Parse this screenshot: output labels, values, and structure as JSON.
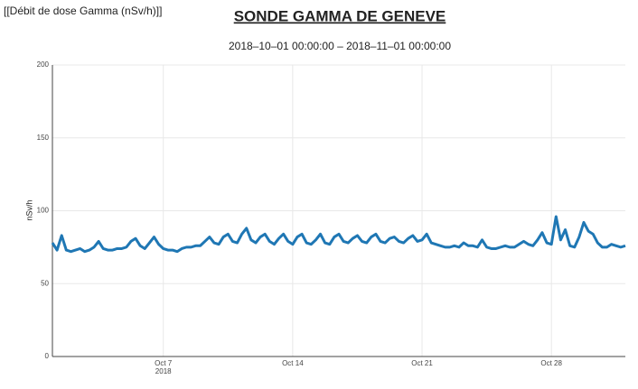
{
  "chart_data": {
    "type": "line",
    "corner_label": "[[Débit de dose Gamma (nSv/h)]]",
    "title": "SONDE GAMMA DE GENEVE",
    "subtitle": "2018‒10‒01 00:00:00 ‒ 2018‒11‒01 00:00:00",
    "y_label": "nSv/h",
    "x_year_label": "2018",
    "xlim": [
      "2018-10-01 00:00",
      "2018-11-01 00:00"
    ],
    "xticks": [
      {
        "value": "2018-10-07 00:00",
        "label": "Oct 7"
      },
      {
        "value": "2018-10-14 00:00",
        "label": "Oct 14"
      },
      {
        "value": "2018-10-21 00:00",
        "label": "Oct 21"
      },
      {
        "value": "2018-10-28 00:00",
        "label": "Oct 28"
      }
    ],
    "ylim": [
      0,
      200
    ],
    "yticks": [
      0,
      50,
      100,
      150,
      200
    ],
    "grid": true,
    "x": [
      "2018-10-01 00:00",
      "2018-10-01 06:00",
      "2018-10-01 12:00",
      "2018-10-01 18:00",
      "2018-10-02 00:00",
      "2018-10-02 06:00",
      "2018-10-02 12:00",
      "2018-10-02 18:00",
      "2018-10-03 00:00",
      "2018-10-03 06:00",
      "2018-10-03 12:00",
      "2018-10-03 18:00",
      "2018-10-04 00:00",
      "2018-10-04 06:00",
      "2018-10-04 12:00",
      "2018-10-04 18:00",
      "2018-10-05 00:00",
      "2018-10-05 06:00",
      "2018-10-05 12:00",
      "2018-10-05 18:00",
      "2018-10-06 00:00",
      "2018-10-06 06:00",
      "2018-10-06 12:00",
      "2018-10-06 18:00",
      "2018-10-07 00:00",
      "2018-10-07 06:00",
      "2018-10-07 12:00",
      "2018-10-07 18:00",
      "2018-10-08 00:00",
      "2018-10-08 06:00",
      "2018-10-08 12:00",
      "2018-10-08 18:00",
      "2018-10-09 00:00",
      "2018-10-09 06:00",
      "2018-10-09 12:00",
      "2018-10-09 18:00",
      "2018-10-10 00:00",
      "2018-10-10 06:00",
      "2018-10-10 12:00",
      "2018-10-10 18:00",
      "2018-10-11 00:00",
      "2018-10-11 06:00",
      "2018-10-11 12:00",
      "2018-10-11 18:00",
      "2018-10-12 00:00",
      "2018-10-12 06:00",
      "2018-10-12 12:00",
      "2018-10-12 18:00",
      "2018-10-13 00:00",
      "2018-10-13 06:00",
      "2018-10-13 12:00",
      "2018-10-13 18:00",
      "2018-10-14 00:00",
      "2018-10-14 06:00",
      "2018-10-14 12:00",
      "2018-10-14 18:00",
      "2018-10-15 00:00",
      "2018-10-15 06:00",
      "2018-10-15 12:00",
      "2018-10-15 18:00",
      "2018-10-16 00:00",
      "2018-10-16 06:00",
      "2018-10-16 12:00",
      "2018-10-16 18:00",
      "2018-10-17 00:00",
      "2018-10-17 06:00",
      "2018-10-17 12:00",
      "2018-10-17 18:00",
      "2018-10-18 00:00",
      "2018-10-18 06:00",
      "2018-10-18 12:00",
      "2018-10-18 18:00",
      "2018-10-19 00:00",
      "2018-10-19 06:00",
      "2018-10-19 12:00",
      "2018-10-19 18:00",
      "2018-10-20 00:00",
      "2018-10-20 06:00",
      "2018-10-20 12:00",
      "2018-10-20 18:00",
      "2018-10-21 00:00",
      "2018-10-21 06:00",
      "2018-10-21 12:00",
      "2018-10-21 18:00",
      "2018-10-22 00:00",
      "2018-10-22 06:00",
      "2018-10-22 12:00",
      "2018-10-22 18:00",
      "2018-10-23 00:00",
      "2018-10-23 06:00",
      "2018-10-23 12:00",
      "2018-10-23 18:00",
      "2018-10-24 00:00",
      "2018-10-24 06:00",
      "2018-10-24 12:00",
      "2018-10-24 18:00",
      "2018-10-25 00:00",
      "2018-10-25 06:00",
      "2018-10-25 12:00",
      "2018-10-25 18:00",
      "2018-10-26 00:00",
      "2018-10-26 06:00",
      "2018-10-26 12:00",
      "2018-10-26 18:00",
      "2018-10-27 00:00",
      "2018-10-27 06:00",
      "2018-10-27 12:00",
      "2018-10-27 18:00",
      "2018-10-28 00:00",
      "2018-10-28 06:00",
      "2018-10-28 12:00",
      "2018-10-28 18:00",
      "2018-10-29 00:00",
      "2018-10-29 06:00",
      "2018-10-29 12:00",
      "2018-10-29 18:00",
      "2018-10-30 00:00",
      "2018-10-30 06:00",
      "2018-10-30 12:00",
      "2018-10-30 18:00",
      "2018-10-31 00:00",
      "2018-10-31 06:00",
      "2018-10-31 12:00",
      "2018-10-31 18:00",
      "2018-11-01 00:00"
    ],
    "series": [
      {
        "color": "#1f77b4",
        "values": [
          78,
          73,
          83,
          73,
          72,
          73,
          74,
          72,
          73,
          75,
          79,
          74,
          73,
          73,
          74,
          74,
          75,
          79,
          81,
          76,
          74,
          78,
          82,
          77,
          74,
          73,
          73,
          72,
          74,
          75,
          75,
          76,
          76,
          79,
          82,
          78,
          77,
          82,
          84,
          79,
          78,
          84,
          88,
          80,
          78,
          82,
          84,
          79,
          77,
          81,
          84,
          79,
          77,
          82,
          84,
          78,
          77,
          80,
          84,
          78,
          77,
          82,
          84,
          79,
          78,
          81,
          83,
          79,
          78,
          82,
          84,
          79,
          78,
          81,
          82,
          79,
          78,
          81,
          83,
          79,
          80,
          84,
          78,
          77,
          76,
          75,
          75,
          76,
          75,
          78,
          76,
          76,
          75,
          80,
          75,
          74,
          74,
          75,
          76,
          75,
          75,
          77,
          79,
          77,
          76,
          80,
          85,
          78,
          77,
          96,
          80,
          87,
          76,
          75,
          82,
          92,
          86,
          84,
          78,
          75,
          75,
          77,
          76,
          75,
          76
        ]
      }
    ]
  }
}
